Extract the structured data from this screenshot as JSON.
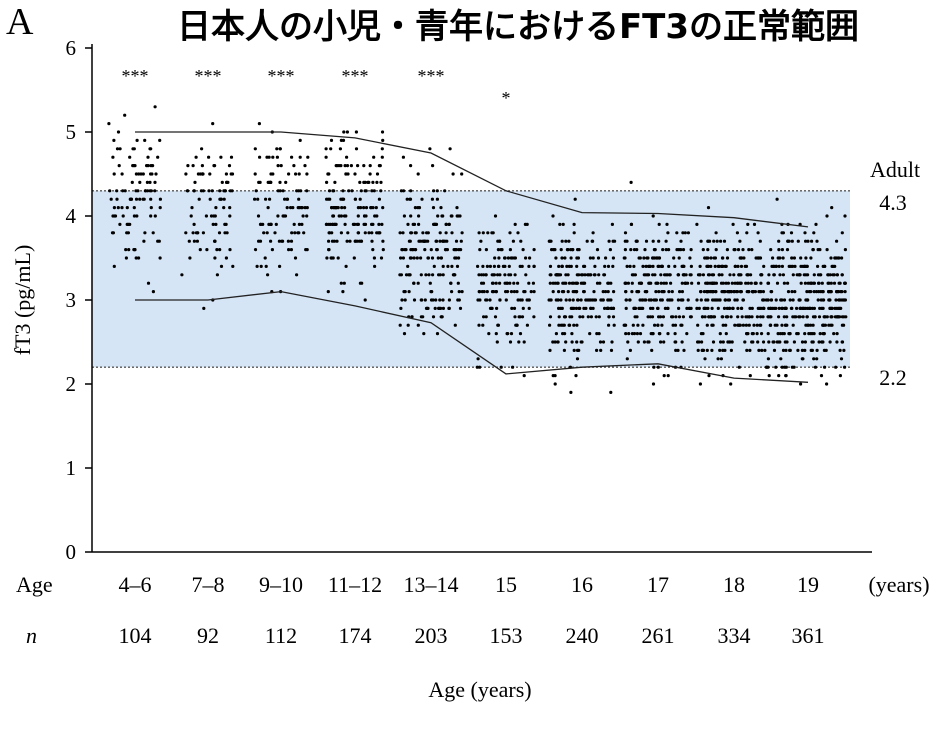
{
  "panel_label": "A",
  "chart_data": {
    "type": "scatter",
    "title": "日本人の小児・青年におけるFT3の正常範囲",
    "ylabel": "fT3 (pg/mL)",
    "xlabel": "Age (years)",
    "ylim": [
      0,
      6
    ],
    "yticks": [
      0,
      1,
      2,
      3,
      4,
      5,
      6
    ],
    "grid": false,
    "row_labels": {
      "age": "Age",
      "n": "n",
      "units": "(years)"
    },
    "groups": [
      {
        "age": "4–6",
        "n": "104",
        "significance": "***",
        "upper": 5.0,
        "lower": 3.0,
        "center": 4.2,
        "spread": 0.45
      },
      {
        "age": "7–8",
        "n": "92",
        "significance": "***",
        "upper": 5.0,
        "lower": 3.0,
        "center": 4.2,
        "spread": 0.45
      },
      {
        "age": "9–10",
        "n": "112",
        "significance": "***",
        "upper": 5.0,
        "lower": 3.1,
        "center": 4.1,
        "spread": 0.45
      },
      {
        "age": "11–12",
        "n": "174",
        "significance": "***",
        "upper": 4.93,
        "lower": 2.93,
        "center": 4.0,
        "spread": 0.45
      },
      {
        "age": "13–14",
        "n": "203",
        "significance": "***",
        "upper": 4.75,
        "lower": 2.73,
        "center": 3.55,
        "spread": 0.45
      },
      {
        "age": "15",
        "n": "153",
        "significance": "*",
        "upper": 4.3,
        "lower": 2.12,
        "center": 3.15,
        "spread": 0.42
      },
      {
        "age": "16",
        "n": "240",
        "significance": "",
        "upper": 4.04,
        "lower": 2.2,
        "center": 3.1,
        "spread": 0.4
      },
      {
        "age": "17",
        "n": "261",
        "significance": "",
        "upper": 4.03,
        "lower": 2.24,
        "center": 3.1,
        "spread": 0.4
      },
      {
        "age": "18",
        "n": "334",
        "significance": "",
        "upper": 3.98,
        "lower": 2.07,
        "center": 3.05,
        "spread": 0.4
      },
      {
        "age": "19",
        "n": "361",
        "significance": "",
        "upper": 3.87,
        "lower": 2.02,
        "center": 3.0,
        "spread": 0.4
      }
    ],
    "adult_range": {
      "label": "Adult",
      "upper": 4.3,
      "lower": 2.2,
      "upper_label": "4.3",
      "lower_label": "2.2",
      "color": "#d5e5f5"
    }
  }
}
